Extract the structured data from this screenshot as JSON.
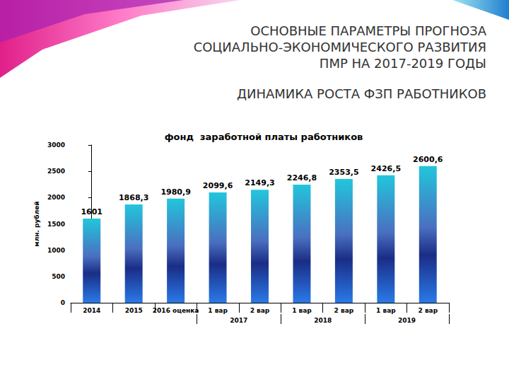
{
  "slide": {
    "heading": [
      "ОСНОВНЫЕ ПАРАМЕТРЫ ПРОГНОЗА",
      "СОЦИАЛЬНО-ЭКОНОМИЧЕСКОГО РАЗВИТИЯ",
      "ПМР НА 2017-2019 ГОДЫ"
    ],
    "subheading": "ДИНАМИКА РОСТА ФЗП РАБОТНИКОВ"
  },
  "chart_data": {
    "type": "bar",
    "title": "фонд  заработной платы работников",
    "y_label": "млн. рублей",
    "categories": [
      "2014",
      "2015",
      "2016 оценка",
      "1 вар",
      "2 вар",
      "1 вар",
      "2 вар",
      "1 вар",
      "2 вар"
    ],
    "groups": [
      {
        "label": "2017",
        "start": 3,
        "end": 4
      },
      {
        "label": "2018",
        "start": 5,
        "end": 6
      },
      {
        "label": "2019",
        "start": 7,
        "end": 8
      }
    ],
    "values": [
      1601,
      1868.3,
      1980.9,
      2099.6,
      2149.3,
      2246.8,
      2353.5,
      2426.5,
      2600.6
    ],
    "value_labels": [
      "1601",
      "1868,3",
      "1980,9",
      "2099,6",
      "2149,3",
      "2246,8",
      "2353,5",
      "2426,5",
      "2600,6"
    ],
    "color": "#22c6dc",
    "ylim": [
      0,
      3000
    ],
    "yticks": [
      0,
      500,
      1000,
      1500,
      2000,
      2500,
      3000
    ],
    "grid": false,
    "data_labels": true
  }
}
